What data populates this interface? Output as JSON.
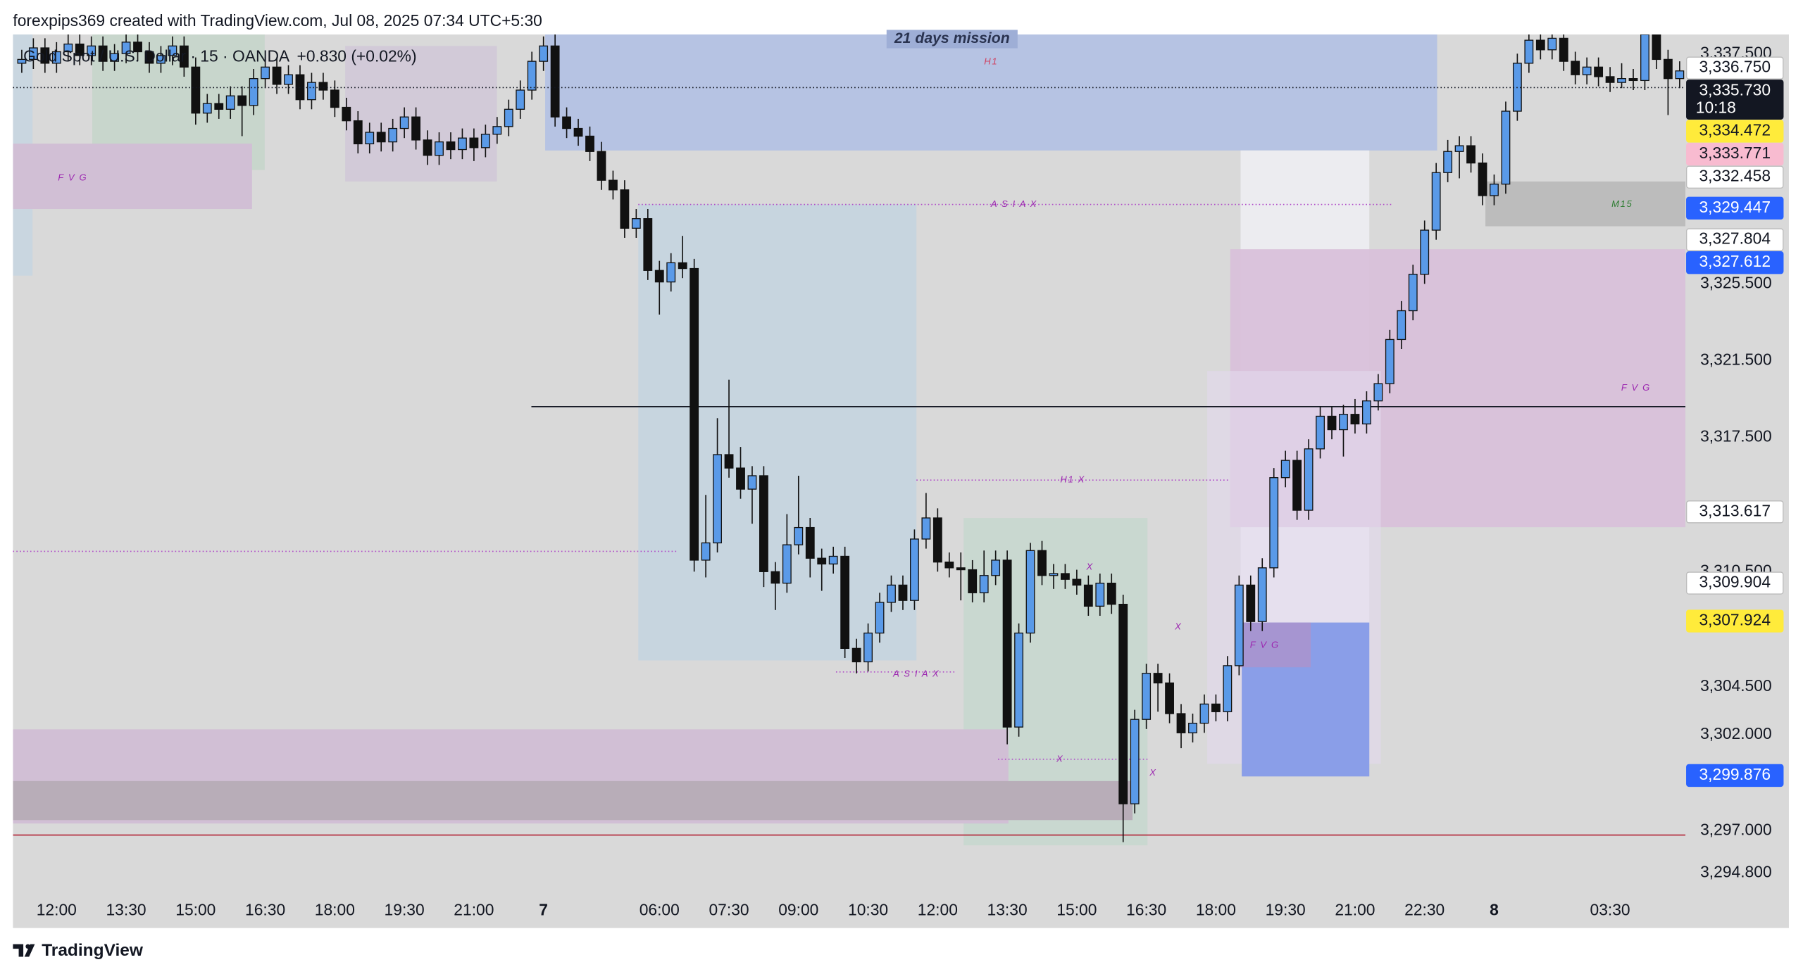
{
  "header": "forexpips369 created with TradingView.com, Jul 08, 2025 07:34 UTC+5:30",
  "footer": "TradingView",
  "chart_data": {
    "type": "candlestick",
    "title": "Gold Spot / U.S. Dollar · 15 · OANDA",
    "change": "+0.830 (+0.02%)",
    "up_color": "#5a9ae8",
    "down_color": "#111111",
    "xlim": [
      -0.76,
      143.5
    ],
    "ylim": [
      3293.6,
      3338.5
    ],
    "xticks": [
      {
        "value": 3,
        "label": "12:00"
      },
      {
        "value": 9,
        "label": "13:30"
      },
      {
        "value": 15,
        "label": "15:00"
      },
      {
        "value": 21,
        "label": "16:30"
      },
      {
        "value": 27,
        "label": "18:00"
      },
      {
        "value": 33,
        "label": "19:30"
      },
      {
        "value": 39,
        "label": "21:00"
      },
      {
        "value": 45,
        "label": "7"
      },
      {
        "value": 55,
        "label": "06:00"
      },
      {
        "value": 61,
        "label": "07:30"
      },
      {
        "value": 67,
        "label": "09:00"
      },
      {
        "value": 73,
        "label": "10:30"
      },
      {
        "value": 79,
        "label": "12:00"
      },
      {
        "value": 85,
        "label": "13:30"
      },
      {
        "value": 91,
        "label": "15:00"
      },
      {
        "value": 97,
        "label": "16:30"
      },
      {
        "value": 103,
        "label": "18:00"
      },
      {
        "value": 109,
        "label": "19:30"
      },
      {
        "value": 115,
        "label": "21:00"
      },
      {
        "value": 121,
        "label": "22:30"
      },
      {
        "value": 127,
        "label": "8"
      },
      {
        "value": 137,
        "label": "03:30"
      }
    ],
    "yticks": [
      {
        "value": 3337.5,
        "label": "3,337.500"
      },
      {
        "value": 3325.5,
        "label": "3,325.500"
      },
      {
        "value": 3321.5,
        "label": "3,321.500"
      },
      {
        "value": 3317.5,
        "label": "3,317.500"
      },
      {
        "value": 3310.5,
        "label": "3,310.500"
      },
      {
        "value": 3304.5,
        "label": "3,304.500"
      },
      {
        "value": 3302,
        "label": "3,302.000"
      },
      {
        "value": 3297,
        "label": "3,297.000"
      },
      {
        "value": 3294.8,
        "label": "3,294.800"
      }
    ],
    "ohlc": [
      [
        3337.0,
        3337.7,
        3336.5,
        3337.2
      ],
      [
        3337.2,
        3338.3,
        3336.7,
        3337.8
      ],
      [
        3337.8,
        3338.3,
        3336.5,
        3337.0
      ],
      [
        3337.0,
        3338.1,
        3336.5,
        3337.6
      ],
      [
        3337.6,
        3338.5,
        3337.1,
        3338.0
      ],
      [
        3338.0,
        3338.5,
        3336.9,
        3337.4
      ],
      [
        3337.4,
        3338.4,
        3336.9,
        3337.9
      ],
      [
        3337.9,
        3338.4,
        3336.6,
        3337.1
      ],
      [
        3337.1,
        3338.0,
        3336.6,
        3337.5
      ],
      [
        3337.5,
        3338.6,
        3337.0,
        3338.1
      ],
      [
        3338.1,
        3338.6,
        3337.1,
        3337.6
      ],
      [
        3337.6,
        3338.1,
        3336.5,
        3337.0
      ],
      [
        3337.0,
        3337.9,
        3336.5,
        3337.4
      ],
      [
        3337.4,
        3338.4,
        3336.9,
        3337.9
      ],
      [
        3337.9,
        3338.4,
        3336.3,
        3336.8
      ],
      [
        3336.8,
        3337.3,
        3333.8,
        3334.4
      ],
      [
        3334.4,
        3335.4,
        3333.9,
        3334.9
      ],
      [
        3334.9,
        3335.4,
        3334.1,
        3334.6
      ],
      [
        3334.6,
        3335.8,
        3334.1,
        3335.3
      ],
      [
        3335.3,
        3335.8,
        3333.2,
        3334.8
      ],
      [
        3334.8,
        3336.7,
        3334.3,
        3336.2
      ],
      [
        3336.2,
        3337.3,
        3335.7,
        3336.8
      ],
      [
        3336.8,
        3337.3,
        3335.4,
        3335.9
      ],
      [
        3335.9,
        3336.9,
        3335.4,
        3336.4
      ],
      [
        3336.4,
        3336.9,
        3334.6,
        3335.1
      ],
      [
        3335.1,
        3336.5,
        3334.6,
        3336.0
      ],
      [
        3336.0,
        3336.5,
        3335.1,
        3335.6
      ],
      [
        3335.6,
        3336.1,
        3334.2,
        3334.7
      ],
      [
        3334.7,
        3335.2,
        3333.5,
        3334.0
      ],
      [
        3334.0,
        3334.5,
        3332.3,
        3332.8
      ],
      [
        3332.8,
        3333.9,
        3332.3,
        3333.4
      ],
      [
        3333.4,
        3333.9,
        3332.4,
        3332.9
      ],
      [
        3332.9,
        3334.1,
        3332.4,
        3333.6
      ],
      [
        3333.6,
        3334.7,
        3333.1,
        3334.2
      ],
      [
        3334.2,
        3334.7,
        3332.5,
        3333.0
      ],
      [
        3333.0,
        3333.5,
        3331.7,
        3332.2
      ],
      [
        3332.2,
        3333.4,
        3331.7,
        3332.9
      ],
      [
        3332.9,
        3333.4,
        3332.0,
        3332.5
      ],
      [
        3332.5,
        3333.6,
        3332.0,
        3333.1
      ],
      [
        3333.1,
        3333.6,
        3331.9,
        3332.6
      ],
      [
        3332.6,
        3333.8,
        3332.1,
        3333.3
      ],
      [
        3333.3,
        3334.2,
        3332.8,
        3333.7
      ],
      [
        3333.7,
        3335.1,
        3333.2,
        3334.6
      ],
      [
        3334.6,
        3336.1,
        3334.1,
        3335.6
      ],
      [
        3335.6,
        3337.6,
        3335.1,
        3337.1
      ],
      [
        3337.1,
        3338.4,
        3336.6,
        3337.9
      ],
      [
        3337.9,
        3338.5,
        3333.7,
        3334.2
      ],
      [
        3334.2,
        3334.7,
        3333.1,
        3333.6
      ],
      [
        3333.6,
        3334.1,
        3332.7,
        3333.2
      ],
      [
        3333.2,
        3333.7,
        3331.9,
        3332.4
      ],
      [
        3332.4,
        3332.9,
        3330.4,
        3330.9
      ],
      [
        3330.9,
        3331.4,
        3329.9,
        3330.4
      ],
      [
        3330.4,
        3330.9,
        3327.9,
        3328.4
      ],
      [
        3328.4,
        3329.4,
        3327.9,
        3328.9
      ],
      [
        3328.9,
        3329.4,
        3325.7,
        3326.2
      ],
      [
        3326.2,
        3326.7,
        3323.9,
        3325.6
      ],
      [
        3325.6,
        3327.1,
        3325.1,
        3326.6
      ],
      [
        3326.6,
        3328.0,
        3325.8,
        3326.3
      ],
      [
        3326.3,
        3326.8,
        3310.5,
        3311.1
      ],
      [
        3311.1,
        3314.5,
        3310.2,
        3312.0
      ],
      [
        3312.0,
        3318.5,
        3311.5,
        3316.6
      ],
      [
        3316.6,
        3320.5,
        3315.4,
        3315.9
      ],
      [
        3315.9,
        3317.0,
        3314.3,
        3314.8
      ],
      [
        3314.8,
        3316.0,
        3313.0,
        3315.5
      ],
      [
        3315.5,
        3316.0,
        3309.7,
        3310.5
      ],
      [
        3310.5,
        3311.0,
        3308.5,
        3309.9
      ],
      [
        3309.9,
        3313.5,
        3309.4,
        3311.9
      ],
      [
        3311.9,
        3315.5,
        3311.4,
        3312.8
      ],
      [
        3312.8,
        3313.3,
        3310.2,
        3311.2
      ],
      [
        3311.2,
        3311.7,
        3309.5,
        3310.9
      ],
      [
        3310.9,
        3311.8,
        3310.4,
        3311.3
      ],
      [
        3311.3,
        3311.8,
        3306.0,
        3306.5
      ],
      [
        3306.5,
        3307.0,
        3305.2,
        3305.8
      ],
      [
        3305.8,
        3307.8,
        3305.3,
        3307.3
      ],
      [
        3307.3,
        3309.4,
        3306.8,
        3308.9
      ],
      [
        3308.9,
        3310.3,
        3308.4,
        3309.8
      ],
      [
        3309.8,
        3310.3,
        3308.5,
        3309.0
      ],
      [
        3309.0,
        3312.7,
        3308.5,
        3312.2
      ],
      [
        3312.2,
        3314.6,
        3311.7,
        3313.3
      ],
      [
        3313.3,
        3313.8,
        3310.5,
        3311.0
      ],
      [
        3311.0,
        3311.5,
        3310.2,
        3310.7
      ],
      [
        3310.7,
        3311.5,
        3309.0,
        3310.6
      ],
      [
        3310.6,
        3311.1,
        3308.9,
        3309.4
      ],
      [
        3309.4,
        3311.6,
        3308.9,
        3310.3
      ],
      [
        3310.3,
        3311.6,
        3309.8,
        3311.1
      ],
      [
        3311.1,
        3311.6,
        3301.5,
        3302.4
      ],
      [
        3302.4,
        3307.8,
        3301.9,
        3307.3
      ],
      [
        3307.3,
        3312.0,
        3306.8,
        3311.6
      ],
      [
        3311.6,
        3312.1,
        3309.8,
        3310.3
      ],
      [
        3310.3,
        3310.9,
        3309.6,
        3310.4
      ],
      [
        3310.4,
        3310.9,
        3309.6,
        3310.1
      ],
      [
        3310.1,
        3310.6,
        3309.3,
        3309.8
      ],
      [
        3309.8,
        3310.3,
        3308.2,
        3308.7
      ],
      [
        3308.7,
        3310.4,
        3308.2,
        3309.9
      ],
      [
        3309.9,
        3310.4,
        3308.3,
        3308.8
      ],
      [
        3308.8,
        3309.3,
        3296.4,
        3298.4
      ],
      [
        3298.4,
        3303.3,
        3297.9,
        3302.8
      ],
      [
        3302.8,
        3305.7,
        3302.3,
        3305.2
      ],
      [
        3305.2,
        3305.7,
        3303.2,
        3304.7
      ],
      [
        3304.7,
        3305.2,
        3302.6,
        3303.1
      ],
      [
        3303.1,
        3303.6,
        3301.3,
        3302.1
      ],
      [
        3302.1,
        3303.1,
        3301.6,
        3302.6
      ],
      [
        3302.6,
        3304.1,
        3302.1,
        3303.6
      ],
      [
        3303.6,
        3304.1,
        3302.7,
        3303.2
      ],
      [
        3303.2,
        3306.1,
        3302.7,
        3305.6
      ],
      [
        3305.6,
        3310.3,
        3305.1,
        3309.8
      ],
      [
        3309.8,
        3310.3,
        3307.4,
        3307.9
      ],
      [
        3307.9,
        3311.2,
        3307.4,
        3310.7
      ],
      [
        3310.7,
        3315.9,
        3310.2,
        3315.4
      ],
      [
        3315.4,
        3316.8,
        3314.9,
        3316.3
      ],
      [
        3316.3,
        3316.8,
        3313.2,
        3313.7
      ],
      [
        3313.7,
        3317.4,
        3313.2,
        3316.9
      ],
      [
        3316.9,
        3319.1,
        3316.4,
        3318.6
      ],
      [
        3318.6,
        3319.1,
        3317.4,
        3317.9
      ],
      [
        3317.9,
        3319.2,
        3316.5,
        3318.7
      ],
      [
        3318.7,
        3319.5,
        3317.7,
        3318.2
      ],
      [
        3318.2,
        3319.9,
        3317.7,
        3319.4
      ],
      [
        3319.4,
        3320.8,
        3318.9,
        3320.3
      ],
      [
        3320.3,
        3323.1,
        3319.8,
        3322.6
      ],
      [
        3322.6,
        3324.6,
        3322.1,
        3324.1
      ],
      [
        3324.1,
        3326.5,
        3323.6,
        3326.0
      ],
      [
        3326.0,
        3328.8,
        3325.5,
        3328.3
      ],
      [
        3328.3,
        3331.8,
        3327.8,
        3331.3
      ],
      [
        3331.3,
        3333.0,
        3330.8,
        3332.4
      ],
      [
        3332.4,
        3333.2,
        3331.0,
        3332.7
      ],
      [
        3332.7,
        3333.2,
        3331.3,
        3331.8
      ],
      [
        3331.8,
        3332.3,
        3329.6,
        3330.1
      ],
      [
        3330.1,
        3331.2,
        3329.6,
        3330.7
      ],
      [
        3330.7,
        3335.0,
        3330.2,
        3334.5
      ],
      [
        3334.5,
        3337.5,
        3334.0,
        3337.0
      ],
      [
        3337.0,
        3338.5,
        3336.5,
        3338.2
      ],
      [
        3338.2,
        3338.7,
        3337.2,
        3337.7
      ],
      [
        3337.7,
        3338.8,
        3337.2,
        3338.3
      ],
      [
        3338.3,
        3338.8,
        3336.6,
        3337.1
      ],
      [
        3337.1,
        3337.6,
        3335.9,
        3336.4
      ],
      [
        3336.4,
        3337.3,
        3335.9,
        3336.8
      ],
      [
        3336.8,
        3337.3,
        3335.8,
        3336.3
      ],
      [
        3336.3,
        3336.8,
        3335.5,
        3336.0
      ],
      [
        3336.0,
        3337.0,
        3335.7,
        3336.2
      ],
      [
        3336.2,
        3336.7,
        3335.6,
        3336.1
      ],
      [
        3336.1,
        3339.0,
        3335.6,
        3338.5
      ],
      [
        3338.5,
        3339.0,
        3336.7,
        3337.2
      ],
      [
        3337.2,
        3337.7,
        3334.3,
        3336.2
      ],
      [
        3336.2,
        3337.1,
        3335.7,
        3336.6
      ]
    ],
    "price_labels": [
      {
        "value": 3336.75,
        "label": "3,336.750",
        "bg": "#ffffff",
        "fg": "#131722"
      },
      {
        "value": 3335.73,
        "label": "3,335.730",
        "bg": "#131722",
        "fg": "#ffffff",
        "countdown": "10:18"
      },
      {
        "value": 3334.472,
        "label": "3,334.472",
        "bg": "#ffeb3b",
        "fg": "#131722"
      },
      {
        "value": 3333.771,
        "label": "3,333.771",
        "bg": "#f8bbd0",
        "fg": "#131722"
      },
      {
        "value": 3332.458,
        "label": "3,332.458",
        "bg": "#ffffff",
        "fg": "#131722"
      },
      {
        "value": 3329.447,
        "label": "3,329.447",
        "bg": "#2962ff",
        "fg": "#ffffff"
      },
      {
        "value": 3327.804,
        "label": "3,327.804",
        "bg": "#ffffff",
        "fg": "#131722"
      },
      {
        "value": 3327.612,
        "label": "3,327.612",
        "bg": "#2962ff",
        "fg": "#ffffff"
      },
      {
        "value": 3313.617,
        "label": "3,313.617",
        "bg": "#ffffff",
        "fg": "#131722"
      },
      {
        "value": 3309.904,
        "label": "3,309.904",
        "bg": "#ffffff",
        "fg": "#131722"
      },
      {
        "value": 3307.924,
        "label": "3,307.924",
        "bg": "#ffeb3b",
        "fg": "#131722"
      },
      {
        "value": 3299.876,
        "label": "3,299.876",
        "bg": "#2962ff",
        "fg": "#ffffff"
      }
    ],
    "annotations": [
      "21 days mission",
      "H1",
      "F V G",
      "A S I A   X",
      "H1 X",
      "F V G",
      "F V G",
      "A S I A   X",
      "X",
      "X",
      "X",
      "X",
      "M15"
    ]
  }
}
